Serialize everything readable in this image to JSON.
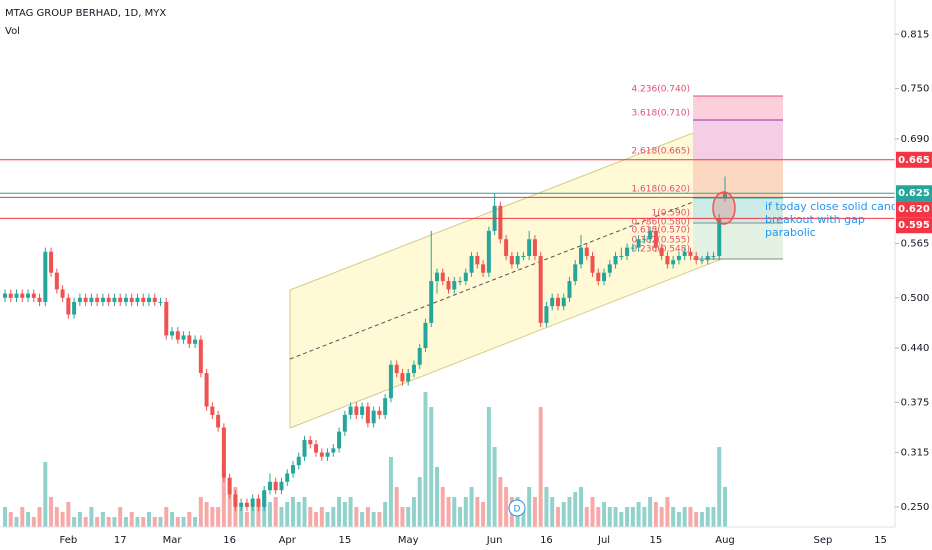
{
  "chart_data": {
    "type": "candlestick",
    "title": "MTAG GROUP BERHAD, 1D, MYX",
    "volume_label": "Vol",
    "colors": {
      "up": "#26a69a",
      "down": "#ef5350"
    },
    "ylim": [
      0.226,
      0.856
    ],
    "yticks": [
      0.815,
      {
        "value": 0.75,
        "label": "0.750"
      },
      {
        "value": 0.69,
        "label": "0.690"
      },
      0.565,
      {
        "value": 0.5,
        "label": "0.500"
      },
      {
        "value": 0.44,
        "label": "0.440"
      },
      0.375,
      0.315,
      {
        "value": 0.25,
        "label": "0.250"
      }
    ],
    "grid": false,
    "categories": [
      null,
      null,
      null,
      null,
      null,
      null,
      null,
      null,
      null,
      null,
      null,
      "Feb",
      null,
      null,
      null,
      null,
      null,
      null,
      null,
      null,
      "17",
      null,
      null,
      null,
      null,
      null,
      null,
      null,
      null,
      "Mar",
      null,
      null,
      null,
      null,
      null,
      null,
      null,
      null,
      null,
      "16",
      null,
      null,
      null,
      null,
      null,
      null,
      null,
      null,
      null,
      "Apr",
      null,
      null,
      null,
      null,
      null,
      null,
      null,
      null,
      null,
      "15",
      null,
      null,
      null,
      null,
      null,
      null,
      null,
      null,
      null,
      null,
      "May",
      null,
      null,
      null,
      null,
      null,
      null,
      null,
      null,
      null,
      null,
      null,
      null,
      null,
      null,
      "Jun",
      null,
      null,
      null,
      null,
      null,
      null,
      null,
      null,
      "16",
      null,
      null,
      null,
      null,
      null,
      null,
      null,
      null,
      null,
      "Jul",
      null,
      null,
      null,
      null,
      null,
      null,
      null,
      null,
      "15",
      null,
      null,
      null,
      null,
      null,
      null,
      null,
      null,
      null,
      null,
      null,
      "Aug",
      null,
      null,
      null,
      null,
      null,
      null,
      null,
      null,
      null,
      null,
      null,
      null,
      null,
      null,
      null,
      null,
      "Sep",
      null,
      null,
      null,
      null,
      null,
      null,
      null,
      null,
      null,
      "15",
      null,
      null,
      null
    ],
    "candles": [
      [
        0.5,
        0.51,
        0.495,
        0.505
      ],
      [
        0.505,
        0.51,
        0.495,
        0.5
      ],
      [
        0.5,
        0.51,
        0.495,
        0.505
      ],
      [
        0.505,
        0.51,
        0.495,
        0.5
      ],
      [
        0.5,
        0.51,
        0.495,
        0.505
      ],
      [
        0.505,
        0.51,
        0.495,
        0.5
      ],
      [
        0.5,
        0.505,
        0.49,
        0.495
      ],
      [
        0.495,
        0.56,
        0.49,
        0.555
      ],
      [
        0.555,
        0.56,
        0.525,
        0.53
      ],
      [
        0.53,
        0.535,
        0.505,
        0.51
      ],
      [
        0.51,
        0.515,
        0.495,
        0.5
      ],
      [
        0.5,
        0.505,
        0.475,
        0.48
      ],
      [
        0.48,
        0.5,
        0.475,
        0.495
      ],
      [
        0.495,
        0.505,
        0.49,
        0.5
      ],
      [
        0.5,
        0.505,
        0.49,
        0.495
      ],
      [
        0.495,
        0.505,
        0.49,
        0.5
      ],
      [
        0.5,
        0.505,
        0.49,
        0.495
      ],
      [
        0.495,
        0.505,
        0.49,
        0.5
      ],
      [
        0.5,
        0.505,
        0.49,
        0.495
      ],
      [
        0.495,
        0.505,
        0.49,
        0.5
      ],
      [
        0.5,
        0.505,
        0.49,
        0.495
      ],
      [
        0.495,
        0.505,
        0.49,
        0.5
      ],
      [
        0.5,
        0.505,
        0.49,
        0.495
      ],
      [
        0.495,
        0.505,
        0.49,
        0.5
      ],
      [
        0.5,
        0.505,
        0.49,
        0.495
      ],
      [
        0.495,
        0.505,
        0.49,
        0.5
      ],
      [
        0.5,
        0.505,
        0.49,
        0.495
      ],
      [
        0.495,
        0.5,
        0.49,
        0.495
      ],
      [
        0.495,
        0.5,
        0.45,
        0.455
      ],
      [
        0.455,
        0.465,
        0.45,
        0.46
      ],
      [
        0.46,
        0.465,
        0.445,
        0.45
      ],
      [
        0.45,
        0.46,
        0.445,
        0.455
      ],
      [
        0.455,
        0.46,
        0.44,
        0.445
      ],
      [
        0.445,
        0.455,
        0.44,
        0.45
      ],
      [
        0.45,
        0.455,
        0.405,
        0.41
      ],
      [
        0.41,
        0.415,
        0.365,
        0.37
      ],
      [
        0.37,
        0.375,
        0.355,
        0.36
      ],
      [
        0.36,
        0.365,
        0.34,
        0.345
      ],
      [
        0.345,
        0.35,
        0.28,
        0.285
      ],
      [
        0.285,
        0.29,
        0.26,
        0.265
      ],
      [
        0.265,
        0.27,
        0.245,
        0.25
      ],
      [
        0.25,
        0.26,
        0.245,
        0.255
      ],
      [
        0.255,
        0.26,
        0.245,
        0.25
      ],
      [
        0.25,
        0.265,
        0.245,
        0.26
      ],
      [
        0.26,
        0.265,
        0.245,
        0.25
      ],
      [
        0.25,
        0.275,
        0.245,
        0.27
      ],
      [
        0.27,
        0.29,
        0.265,
        0.28
      ],
      [
        0.28,
        0.285,
        0.265,
        0.27
      ],
      [
        0.27,
        0.285,
        0.265,
        0.28
      ],
      [
        0.28,
        0.295,
        0.275,
        0.29
      ],
      [
        0.29,
        0.305,
        0.285,
        0.3
      ],
      [
        0.3,
        0.315,
        0.295,
        0.31
      ],
      [
        0.31,
        0.335,
        0.305,
        0.33
      ],
      [
        0.33,
        0.335,
        0.32,
        0.325
      ],
      [
        0.325,
        0.33,
        0.31,
        0.315
      ],
      [
        0.315,
        0.32,
        0.305,
        0.31
      ],
      [
        0.31,
        0.32,
        0.305,
        0.315
      ],
      [
        0.315,
        0.325,
        0.31,
        0.32
      ],
      [
        0.32,
        0.345,
        0.315,
        0.34
      ],
      [
        0.34,
        0.365,
        0.335,
        0.36
      ],
      [
        0.36,
        0.375,
        0.355,
        0.37
      ],
      [
        0.37,
        0.375,
        0.355,
        0.36
      ],
      [
        0.36,
        0.375,
        0.355,
        0.37
      ],
      [
        0.37,
        0.375,
        0.345,
        0.35
      ],
      [
        0.35,
        0.37,
        0.345,
        0.365
      ],
      [
        0.365,
        0.37,
        0.355,
        0.36
      ],
      [
        0.36,
        0.385,
        0.355,
        0.38
      ],
      [
        0.38,
        0.425,
        0.375,
        0.42
      ],
      [
        0.42,
        0.425,
        0.405,
        0.41
      ],
      [
        0.41,
        0.415,
        0.395,
        0.4
      ],
      [
        0.4,
        0.415,
        0.395,
        0.41
      ],
      [
        0.41,
        0.425,
        0.405,
        0.42
      ],
      [
        0.42,
        0.445,
        0.415,
        0.44
      ],
      [
        0.44,
        0.475,
        0.435,
        0.47
      ],
      [
        0.47,
        0.58,
        0.465,
        0.52
      ],
      [
        0.52,
        0.535,
        0.505,
        0.53
      ],
      [
        0.53,
        0.535,
        0.515,
        0.52
      ],
      [
        0.52,
        0.525,
        0.505,
        0.51
      ],
      [
        0.51,
        0.525,
        0.505,
        0.52
      ],
      [
        0.52,
        0.525,
        0.515,
        0.52
      ],
      [
        0.52,
        0.535,
        0.515,
        0.53
      ],
      [
        0.53,
        0.555,
        0.525,
        0.55
      ],
      [
        0.55,
        0.555,
        0.535,
        0.54
      ],
      [
        0.54,
        0.545,
        0.525,
        0.53
      ],
      [
        0.53,
        0.585,
        0.525,
        0.58
      ],
      [
        0.58,
        0.625,
        0.575,
        0.61
      ],
      [
        0.61,
        0.615,
        0.565,
        0.57
      ],
      [
        0.57,
        0.575,
        0.545,
        0.55
      ],
      [
        0.55,
        0.555,
        0.535,
        0.54
      ],
      [
        0.54,
        0.555,
        0.535,
        0.55
      ],
      [
        0.55,
        0.555,
        0.545,
        0.55
      ],
      [
        0.55,
        0.58,
        0.545,
        0.57
      ],
      [
        0.57,
        0.575,
        0.545,
        0.55
      ],
      [
        0.55,
        0.555,
        0.465,
        0.47
      ],
      [
        0.47,
        0.495,
        0.465,
        0.49
      ],
      [
        0.49,
        0.505,
        0.485,
        0.5
      ],
      [
        0.5,
        0.505,
        0.485,
        0.49
      ],
      [
        0.49,
        0.505,
        0.485,
        0.5
      ],
      [
        0.5,
        0.525,
        0.495,
        0.52
      ],
      [
        0.52,
        0.545,
        0.515,
        0.54
      ],
      [
        0.54,
        0.575,
        0.535,
        0.56
      ],
      [
        0.56,
        0.565,
        0.545,
        0.55
      ],
      [
        0.55,
        0.555,
        0.525,
        0.53
      ],
      [
        0.53,
        0.535,
        0.515,
        0.52
      ],
      [
        0.52,
        0.535,
        0.515,
        0.53
      ],
      [
        0.53,
        0.545,
        0.525,
        0.54
      ],
      [
        0.54,
        0.555,
        0.535,
        0.55
      ],
      [
        0.55,
        0.56,
        0.545,
        0.55
      ],
      [
        0.55,
        0.565,
        0.545,
        0.56
      ],
      [
        0.56,
        0.565,
        0.555,
        0.56
      ],
      [
        0.56,
        0.575,
        0.555,
        0.57
      ],
      [
        0.57,
        0.575,
        0.565,
        0.57
      ],
      [
        0.57,
        0.585,
        0.565,
        0.58
      ],
      [
        0.58,
        0.585,
        0.555,
        0.56
      ],
      [
        0.56,
        0.565,
        0.545,
        0.55
      ],
      [
        0.55,
        0.555,
        0.535,
        0.54
      ],
      [
        0.54,
        0.55,
        0.535,
        0.545
      ],
      [
        0.545,
        0.555,
        0.54,
        0.55
      ],
      [
        0.55,
        0.56,
        0.545,
        0.555
      ],
      [
        0.555,
        0.56,
        0.545,
        0.55
      ],
      [
        0.55,
        0.555,
        0.54,
        0.545
      ],
      [
        0.545,
        0.55,
        0.54,
        0.545
      ],
      [
        0.545,
        0.555,
        0.54,
        0.55
      ],
      [
        0.55,
        0.555,
        0.545,
        0.55
      ],
      [
        0.55,
        0.6,
        0.545,
        0.595
      ],
      [
        0.62,
        0.645,
        0.615,
        0.625
      ],
      null,
      null,
      null,
      null,
      null,
      null,
      null,
      null,
      null,
      null,
      null,
      null,
      null,
      null,
      null,
      null,
      null,
      null,
      null,
      null,
      null,
      null,
      null,
      null,
      null,
      null,
      null,
      null,
      null,
      null
    ],
    "volumes": [
      2,
      1.5,
      1,
      2,
      1.5,
      1,
      2,
      6.5,
      3,
      2,
      1.5,
      2.5,
      1,
      1.5,
      1,
      2,
      1,
      1.5,
      1,
      1,
      2,
      1,
      1.5,
      1,
      1,
      1.5,
      1,
      1,
      2,
      1.5,
      1,
      1,
      1.5,
      1,
      3,
      2.5,
      2,
      2,
      6,
      3.5,
      4,
      2,
      1.5,
      2,
      2,
      3.5,
      2.5,
      3,
      2,
      2.5,
      3,
      2.5,
      3,
      2,
      1.5,
      2,
      1.5,
      2,
      3,
      2.5,
      3,
      2,
      1.5,
      2,
      1.5,
      1.5,
      2.5,
      7,
      4,
      2,
      2,
      3,
      5,
      13.5,
      12,
      6,
      4,
      3,
      3,
      2,
      3,
      4,
      3,
      2.5,
      12,
      8,
      5,
      4,
      3,
      3,
      2,
      4,
      3,
      12,
      4,
      3,
      2,
      2.5,
      3,
      3.5,
      4,
      2,
      3,
      2,
      2.5,
      2,
      2,
      1.5,
      2,
      2,
      2.5,
      2,
      3,
      2.5,
      2,
      3,
      2,
      1.5,
      2,
      2,
      1.5,
      1.5,
      2,
      2,
      8,
      4,
      null,
      null,
      null,
      null,
      null,
      null,
      null,
      null,
      null,
      null,
      null,
      null,
      null,
      null,
      null,
      null,
      null,
      null,
      null,
      null,
      null,
      null,
      null,
      null,
      null,
      null,
      null,
      null,
      null,
      null
    ],
    "price_lines": [
      {
        "value": 0.665,
        "label": "0.665",
        "color": "#f23645"
      },
      {
        "value": 0.625,
        "label": "0.625",
        "color": "#26a69a"
      },
      {
        "value": 0.62,
        "label": "0.620",
        "color": "#f23645"
      },
      {
        "value": 0.595,
        "label": "0.595",
        "color": "#f23645"
      }
    ],
    "fib_labels": [
      "4.236(0.740)",
      "3.618(0.710)",
      "2.618(0.665)",
      "1.618(0.620)",
      "1(0.590)",
      "0.786(0.580)",
      "0.618(0.570)",
      "0.382(0.555)",
      "0.236(0.548)"
    ],
    "annotation": [
      "if today close solid candle with v",
      "breakout with gap",
      "parabolic"
    ],
    "dividend_marker": "D"
  }
}
